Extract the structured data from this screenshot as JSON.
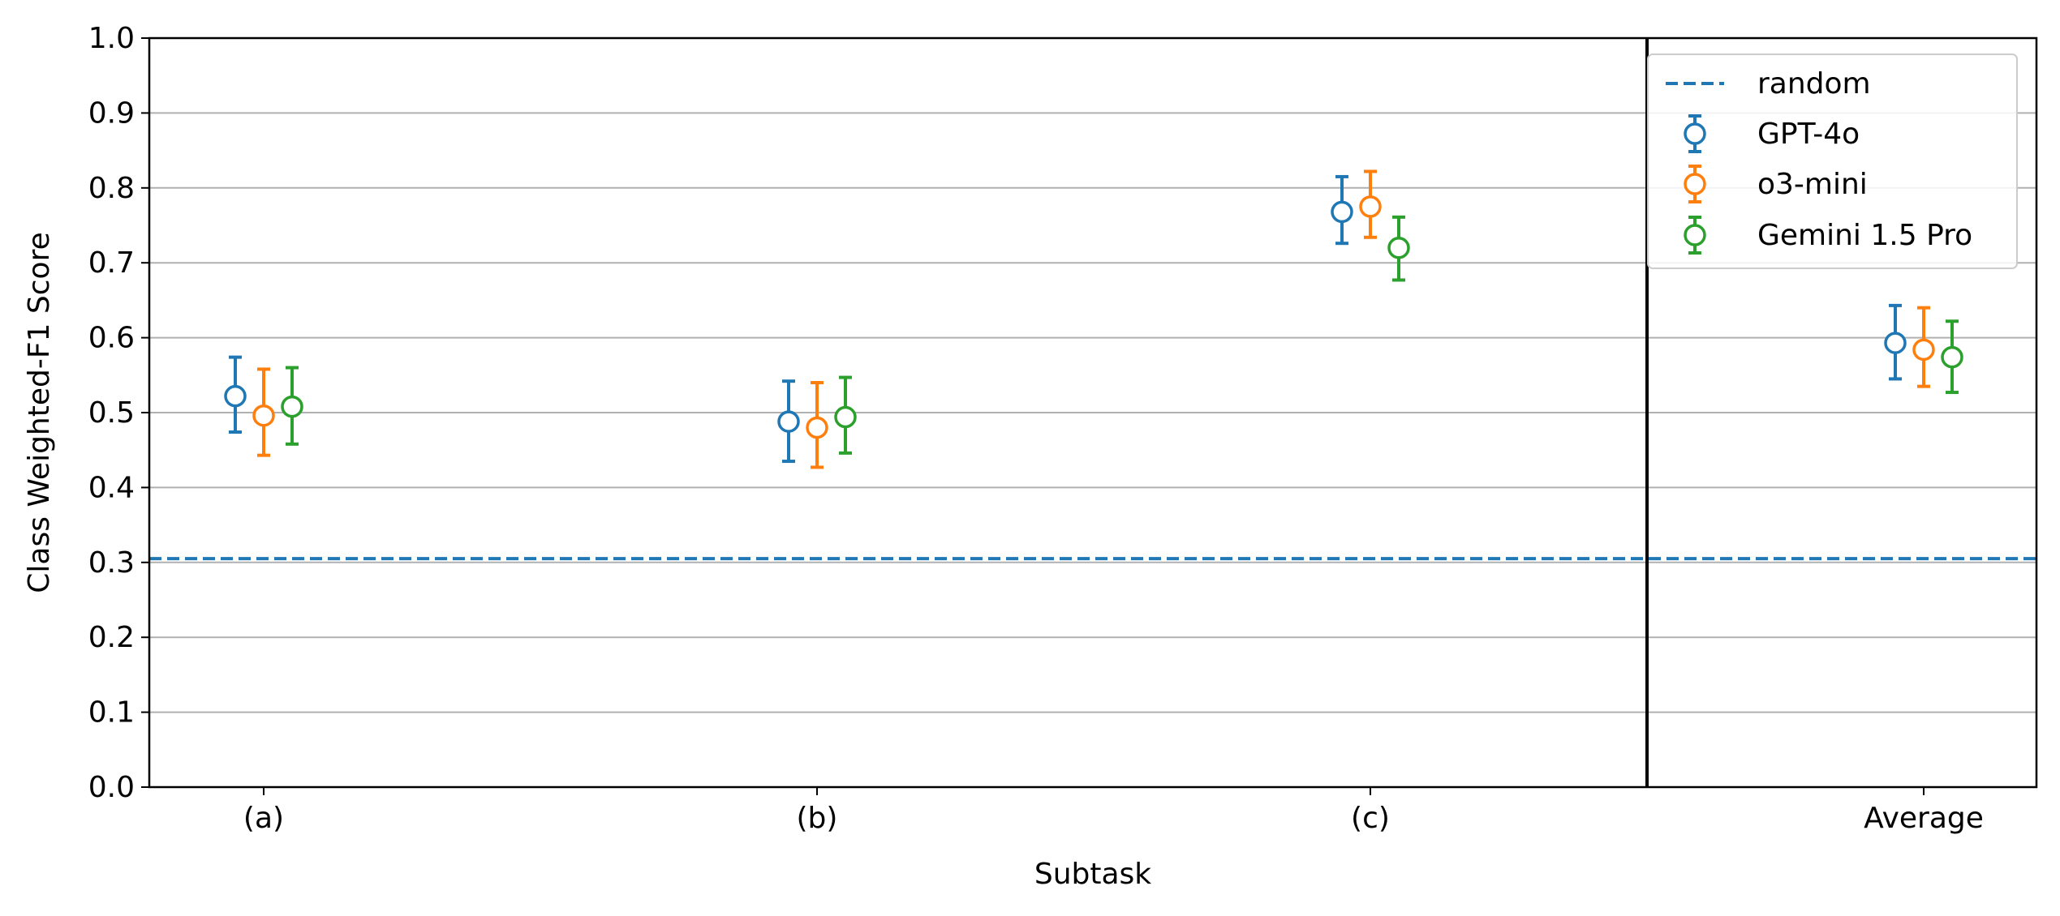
{
  "chart_data": {
    "type": "scatter",
    "categories": [
      "(a)",
      "(b)",
      "(c)",
      "Average"
    ],
    "xlabel": "Subtask",
    "ylabel": "Class Weighted-F1 Score",
    "ylim": [
      0.0,
      1.0
    ],
    "yticks": [
      "0.0",
      "0.1",
      "0.2",
      "0.3",
      "0.4",
      "0.5",
      "0.6",
      "0.7",
      "0.8",
      "0.9",
      "1.0"
    ],
    "grid": "horizontal",
    "legend_position": "top-right",
    "reference_line": {
      "name": "random",
      "value": 0.305,
      "color": "#1f77b4",
      "style": "dashed"
    },
    "separator_after_category": "(c)",
    "series": [
      {
        "name": "GPT-4o",
        "color": "#1f77b4",
        "values": [
          0.522,
          0.488,
          0.768,
          0.593
        ],
        "lower": [
          0.474,
          0.435,
          0.726,
          0.545
        ],
        "upper": [
          0.574,
          0.542,
          0.815,
          0.643
        ]
      },
      {
        "name": "o3-mini",
        "color": "#ff7f0e",
        "values": [
          0.496,
          0.48,
          0.775,
          0.584
        ],
        "lower": [
          0.443,
          0.427,
          0.734,
          0.535
        ],
        "upper": [
          0.558,
          0.54,
          0.822,
          0.64
        ]
      },
      {
        "name": "Gemini 1.5 Pro",
        "color": "#2ca02c",
        "values": [
          0.508,
          0.494,
          0.72,
          0.574
        ],
        "lower": [
          0.458,
          0.446,
          0.677,
          0.527
        ],
        "upper": [
          0.56,
          0.547,
          0.761,
          0.622
        ]
      }
    ]
  }
}
